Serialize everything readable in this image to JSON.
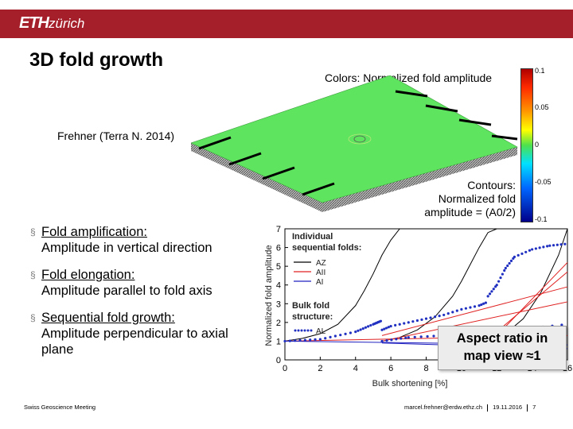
{
  "header": {
    "logo_main": "ETH",
    "logo_sub": "zürich",
    "brand_color": "#a51f2b"
  },
  "slide": {
    "title": "3D fold growth",
    "colors_label": "Colors: Normalized fold amplitude",
    "reference": "Frehner (Terra N. 2014)",
    "contours_label_1": "Contours:",
    "contours_label_2": "Normalized fold",
    "contours_label_3": "amplitude = (A0/2)"
  },
  "colorbar": {
    "ticks": [
      "0.1",
      "0.05",
      "0",
      "-0.05",
      "-0.1"
    ]
  },
  "bullets": [
    {
      "head": "Fold amplification:",
      "sub": "Amplitude in vertical direction"
    },
    {
      "head": "Fold elongation:",
      "sub": "Amplitude parallel to fold axis"
    },
    {
      "head": "Sequential fold growth:",
      "sub": "Amplitude perpendicular to axial plane"
    }
  ],
  "callout": {
    "line1": "Aspect ratio in",
    "line2": "map view ≈1"
  },
  "footer": {
    "left": "Swiss Geoscience Meeting",
    "email": "marcel.frehner@erdw.ethz.ch",
    "date": "19.11.2016",
    "page": "7"
  },
  "chart_data": {
    "type": "line",
    "xlabel": "Bulk shortening [%]",
    "ylabel": "Normalized fold amplitude",
    "xlim": [
      0,
      16
    ],
    "ylim": [
      0,
      7
    ],
    "xticks": [
      "0",
      "2",
      "4",
      "6",
      "8",
      "10",
      "12",
      "14",
      "16"
    ],
    "yticks": [
      "0",
      "1",
      "2",
      "3",
      "4",
      "5",
      "6",
      "7"
    ],
    "legend_title_1": "Individual",
    "legend_title_2": "sequential folds:",
    "legend_title_3": "Bulk fold",
    "legend_title_4": "structure:",
    "legend_items": [
      {
        "label": "AZ",
        "color": "#000000",
        "style": "solid"
      },
      {
        "label": "AII",
        "color": "#e02020",
        "style": "solid"
      },
      {
        "label": "AI",
        "color": "#2020c0",
        "style": "solid"
      },
      {
        "label": "AL",
        "color": "#2030c0",
        "style": "dotted"
      }
    ],
    "series": [
      {
        "name": "AZ",
        "color": "#000000",
        "x": [
          0,
          1,
          2,
          3,
          4,
          4.5,
          5,
          5.5,
          6,
          6.5,
          7
        ],
        "y": [
          1,
          1.15,
          1.4,
          1.9,
          2.9,
          3.7,
          4.6,
          5.6,
          6.4,
          7,
          7.6
        ]
      },
      {
        "name": "AZ",
        "color": "#000000",
        "x": [
          5.5,
          6.5,
          7.5,
          8.5,
          9.5,
          10,
          10.5,
          11,
          11.5,
          12
        ],
        "y": [
          1,
          1.2,
          1.6,
          2.3,
          3.4,
          4.2,
          5.1,
          6,
          6.8,
          7.5
        ]
      },
      {
        "name": "AZ",
        "color": "#000000",
        "x": [
          11.5,
          12.5,
          13.5,
          14.5,
          15.5,
          16
        ],
        "y": [
          1,
          1.4,
          2.2,
          3.6,
          5.6,
          7
        ]
      },
      {
        "name": "AII",
        "color": "#e02020",
        "x": [
          0,
          16
        ],
        "y": [
          1,
          1.3
        ]
      },
      {
        "name": "AII",
        "color": "#e02020",
        "x": [
          5.5,
          16
        ],
        "y": [
          1.3,
          3.9
        ]
      },
      {
        "name": "AII",
        "color": "#e02020",
        "x": [
          5.5,
          16
        ],
        "y": [
          1,
          3.1
        ]
      },
      {
        "name": "AII",
        "color": "#e02020",
        "x": [
          11.5,
          16
        ],
        "y": [
          1.1,
          4.7
        ]
      },
      {
        "name": "AII",
        "color": "#e02020",
        "x": [
          12,
          16
        ],
        "y": [
          1.3,
          5.2
        ]
      },
      {
        "name": "AI",
        "color": "#2020c0",
        "x": [
          0,
          16
        ],
        "y": [
          1,
          0.8
        ]
      },
      {
        "name": "AI",
        "color": "#2020c0",
        "x": [
          5.5,
          16
        ],
        "y": [
          0.9,
          0.6
        ]
      },
      {
        "name": "AL",
        "color": "#2030c0",
        "x": [
          0,
          2,
          4,
          5,
          5.5
        ],
        "y": [
          1,
          1.1,
          1.5,
          1.9,
          2.1
        ]
      },
      {
        "name": "AL",
        "color": "#2030c0",
        "x": [
          5.5,
          6,
          7,
          8,
          9,
          10,
          11,
          11.5
        ],
        "y": [
          1.6,
          1.8,
          2.0,
          2.2,
          2.4,
          2.7,
          2.9,
          3.1
        ]
      },
      {
        "name": "AL",
        "color": "#2030c0",
        "x": [
          11.5,
          12,
          12.5,
          13,
          14,
          15,
          16
        ],
        "y": [
          3.4,
          4.0,
          4.9,
          5.5,
          5.9,
          6.1,
          6.2
        ]
      },
      {
        "name": "AL",
        "color": "#2030c0",
        "x": [
          5.5,
          7,
          9,
          11,
          13,
          16
        ],
        "y": [
          1.0,
          1.2,
          1.3,
          1.4,
          1.6,
          1.9
        ]
      }
    ]
  }
}
